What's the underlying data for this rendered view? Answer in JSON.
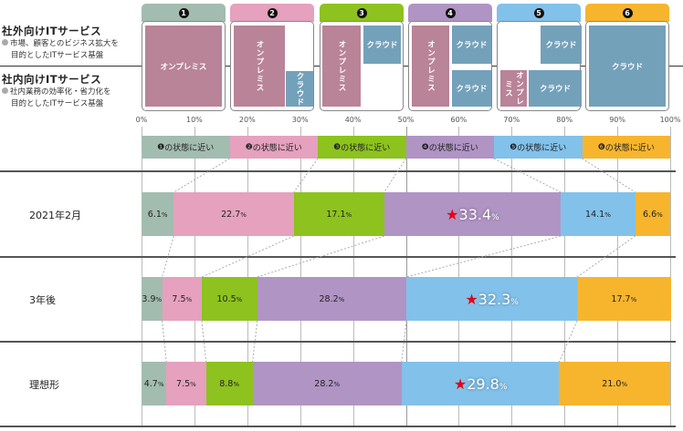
{
  "legend": {
    "external": {
      "title": "社外向けITサービス",
      "desc1": "市場、顧客とのビジネス拡大を",
      "desc2": "目的としたITサービス基盤"
    },
    "internal": {
      "title": "社内向けITサービス",
      "desc1": "社内業務の効率化・省力化を",
      "desc2": "目的としたITサービス基盤"
    }
  },
  "states": [
    {
      "num": "1",
      "color": "#a3bcb0",
      "label": "の状態に近い"
    },
    {
      "num": "2",
      "color": "#e5a1bd",
      "label": "の状態に近い"
    },
    {
      "num": "3",
      "color": "#8dc21f",
      "label": "の状態に近い"
    },
    {
      "num": "4",
      "color": "#b094c4",
      "label": "の状態に近い"
    },
    {
      "num": "5",
      "color": "#82c1ea",
      "label": "の状態に近い"
    },
    {
      "num": "6",
      "color": "#f6b52d",
      "label": "の状態に近い"
    }
  ],
  "blocks": {
    "onprem": "オンプレミス",
    "onprem_short": "オンプレミス",
    "cloud": "クラウド"
  },
  "axis": {
    "ticks": [
      "0%",
      "10%",
      "20%",
      "30%",
      "40%",
      "50%",
      "60%",
      "70%",
      "80%",
      "90%",
      "100%"
    ]
  },
  "rows": [
    {
      "label": "2021年2月",
      "segments": [
        "6.1",
        "22.7",
        "17.1",
        "33.4",
        "14.1",
        "6.6"
      ],
      "highlight": 3
    },
    {
      "label": "3年後",
      "segments": [
        "3.9",
        "7.5",
        "10.5",
        "28.2",
        "32.3",
        "17.7"
      ],
      "highlight": 4
    },
    {
      "label": "理想形",
      "segments": [
        "4.7",
        "7.5",
        "8.8",
        "28.2",
        "29.8",
        "21.0"
      ],
      "highlight": 4
    }
  ],
  "pct_sign": "%",
  "star": "★",
  "chart_data": {
    "type": "bar",
    "orientation": "horizontal-stacked-100",
    "categories": [
      "2021年2月",
      "3年後",
      "理想形"
    ],
    "series": [
      {
        "name": "❶の状態に近い",
        "color": "#a3bcb0",
        "values": [
          6.1,
          3.9,
          4.7
        ]
      },
      {
        "name": "❷の状態に近い",
        "color": "#e5a1bd",
        "values": [
          22.7,
          7.5,
          7.5
        ]
      },
      {
        "name": "❸の状態に近い",
        "color": "#8dc21f",
        "values": [
          17.1,
          10.5,
          8.8
        ]
      },
      {
        "name": "❹の状態に近い",
        "color": "#b094c4",
        "values": [
          33.4,
          28.2,
          28.2
        ]
      },
      {
        "name": "❺の状態に近い",
        "color": "#82c1ea",
        "values": [
          14.1,
          32.3,
          29.8
        ]
      },
      {
        "name": "❻の状態に近い",
        "color": "#f6b52d",
        "values": [
          6.6,
          17.7,
          21.0
        ]
      }
    ],
    "xlabel": "",
    "ylabel": "",
    "xlim": [
      0,
      100
    ],
    "xticks": [
      "0%",
      "10%",
      "20%",
      "30%",
      "40%",
      "50%",
      "60%",
      "70%",
      "80%",
      "90%",
      "100%"
    ],
    "grid": true,
    "legend_position": "top",
    "annotations": [
      "★33.4% (2021年2月, ❹)",
      "★32.3% (3年後, ❺)",
      "★29.8% (理想形, ❺)"
    ]
  }
}
